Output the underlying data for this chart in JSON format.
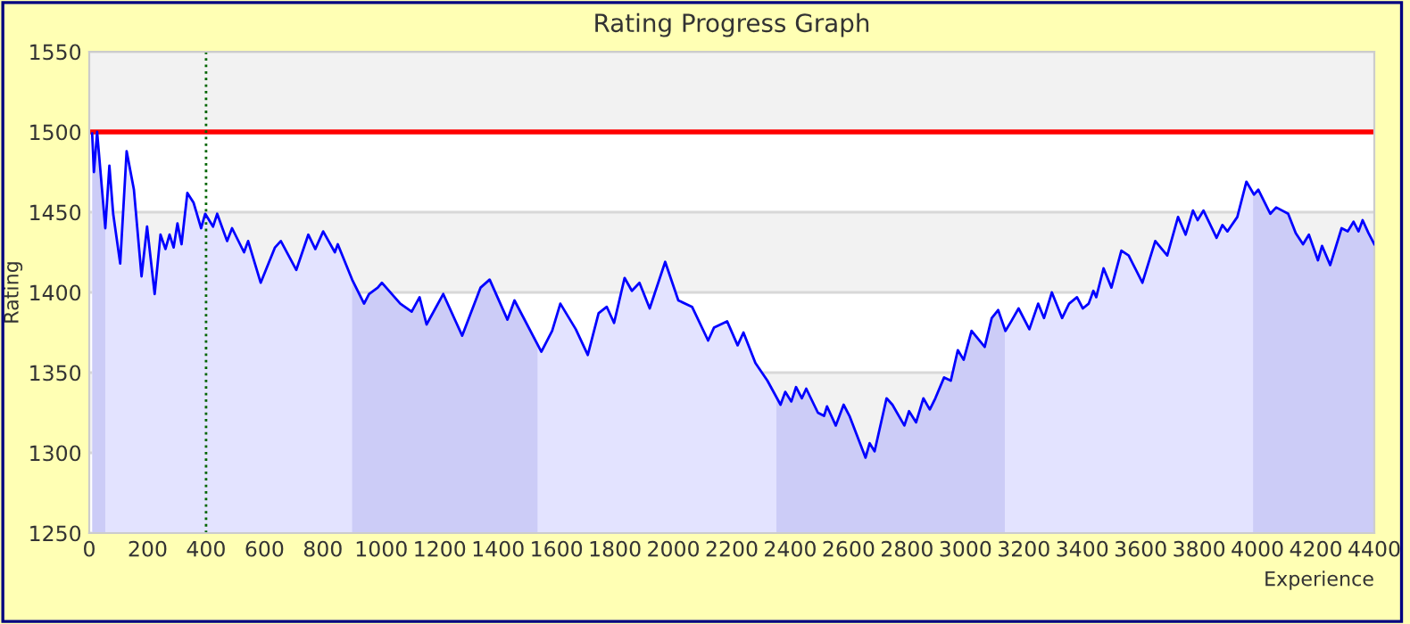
{
  "chart_data": {
    "type": "area",
    "title": "Rating Progress Graph",
    "xlabel": "Experience",
    "ylabel": "Rating",
    "x": [
      10,
      16,
      27,
      55,
      69,
      82,
      106,
      128,
      153,
      179,
      198,
      224,
      244,
      261,
      275,
      289,
      302,
      316,
      336,
      357,
      383,
      397,
      424,
      438,
      472,
      489,
      530,
      544,
      587,
      636,
      656,
      709,
      750,
      774,
      801,
      841,
      851,
      900,
      941,
      958,
      988,
      1002,
      1065,
      1104,
      1131,
      1155,
      1212,
      1277,
      1300,
      1340,
      1371,
      1432,
      1456,
      1548,
      1585,
      1613,
      1666,
      1707,
      1744,
      1772,
      1797,
      1833,
      1858,
      1884,
      1919,
      1972,
      2017,
      2064,
      2119,
      2139,
      2184,
      2220,
      2240,
      2281,
      2322,
      2367,
      2383,
      2404,
      2420,
      2440,
      2455,
      2495,
      2516,
      2526,
      2556,
      2583,
      2603,
      2658,
      2672,
      2689,
      2730,
      2750,
      2791,
      2807,
      2831,
      2856,
      2878,
      2897,
      2927,
      2950,
      2974,
      2994,
      3021,
      3066,
      3090,
      3112,
      3137,
      3157,
      3182,
      3219,
      3249,
      3269,
      3296,
      3331,
      3355,
      3382,
      3402,
      3422,
      3438,
      3448,
      3473,
      3500,
      3534,
      3559,
      3606,
      3650,
      3691,
      3728,
      3754,
      3779,
      3795,
      3815,
      3860,
      3880,
      3897,
      3931,
      3962,
      3988,
      4003,
      4044,
      4064,
      4105,
      4131,
      4156,
      4176,
      4207,
      4221,
      4249,
      4288,
      4309,
      4329,
      4346,
      4360,
      4380,
      4400
    ],
    "series": [
      {
        "color": "#0000ff",
        "values": [
          1499,
          1475,
          1500,
          1440,
          1479,
          1449,
          1418,
          1488,
          1464,
          1410,
          1441,
          1399,
          1436,
          1427,
          1436,
          1428,
          1443,
          1430,
          1462,
          1456,
          1440,
          1449,
          1441,
          1449,
          1432,
          1440,
          1425,
          1432,
          1406,
          1428,
          1432,
          1414,
          1436,
          1427,
          1438,
          1425,
          1430,
          1408,
          1393,
          1399,
          1403,
          1406,
          1393,
          1388,
          1397,
          1380,
          1399,
          1373,
          1384,
          1403,
          1408,
          1383,
          1395,
          1363,
          1376,
          1393,
          1377,
          1361,
          1387,
          1391,
          1381,
          1409,
          1401,
          1406,
          1390,
          1419,
          1395,
          1391,
          1370,
          1378,
          1382,
          1367,
          1375,
          1356,
          1345,
          1330,
          1338,
          1332,
          1341,
          1334,
          1340,
          1325,
          1323,
          1329,
          1317,
          1330,
          1323,
          1297,
          1306,
          1301,
          1334,
          1330,
          1317,
          1326,
          1319,
          1334,
          1327,
          1334,
          1347,
          1345,
          1364,
          1358,
          1376,
          1366,
          1384,
          1389,
          1376,
          1382,
          1390,
          1377,
          1393,
          1384,
          1400,
          1384,
          1393,
          1397,
          1390,
          1393,
          1401,
          1397,
          1415,
          1403,
          1426,
          1423,
          1406,
          1432,
          1423,
          1447,
          1436,
          1451,
          1445,
          1451,
          1434,
          1442,
          1438,
          1447,
          1469,
          1461,
          1464,
          1449,
          1453,
          1449,
          1437,
          1430,
          1436,
          1420,
          1429,
          1417,
          1440,
          1438,
          1444,
          1438,
          1445,
          1437,
          1430
        ]
      }
    ],
    "xlim": [
      0,
      4400
    ],
    "ylim": [
      1250,
      1550
    ],
    "xticks": [
      0,
      200,
      400,
      600,
      800,
      1000,
      1200,
      1400,
      1600,
      1800,
      2000,
      2200,
      2400,
      2600,
      2800,
      3000,
      3200,
      3400,
      3600,
      3800,
      4000,
      4200,
      4400
    ],
    "yticks": [
      1250,
      1300,
      1350,
      1400,
      1450,
      1500,
      1550
    ],
    "grid": "y",
    "legend": false,
    "ref_lines": [
      {
        "axis": "y",
        "value": 1500,
        "color": "#ff0000",
        "line_style": "solid"
      },
      {
        "axis": "x",
        "value": 400,
        "color": "#006400",
        "line_style": "dotted"
      }
    ],
    "bands": [
      {
        "axis": "y",
        "from": 1300,
        "to": 1350,
        "color": "#f2f2f2"
      },
      {
        "axis": "y",
        "from": 1400,
        "to": 1450,
        "color": "#f2f2f2"
      },
      {
        "axis": "y",
        "from": 1500,
        "to": 1550,
        "color": "#f2f2f2"
      },
      {
        "axis": "x",
        "from": 0,
        "to": 55,
        "color": "#e6e6f7"
      },
      {
        "axis": "x",
        "from": 900,
        "to": 1535,
        "color": "#e6e6f7"
      },
      {
        "axis": "x",
        "from": 2353,
        "to": 3135,
        "color": "#e6e6f7"
      },
      {
        "axis": "x",
        "from": 3985,
        "to": 4400,
        "color": "#e6e6f7"
      }
    ]
  }
}
